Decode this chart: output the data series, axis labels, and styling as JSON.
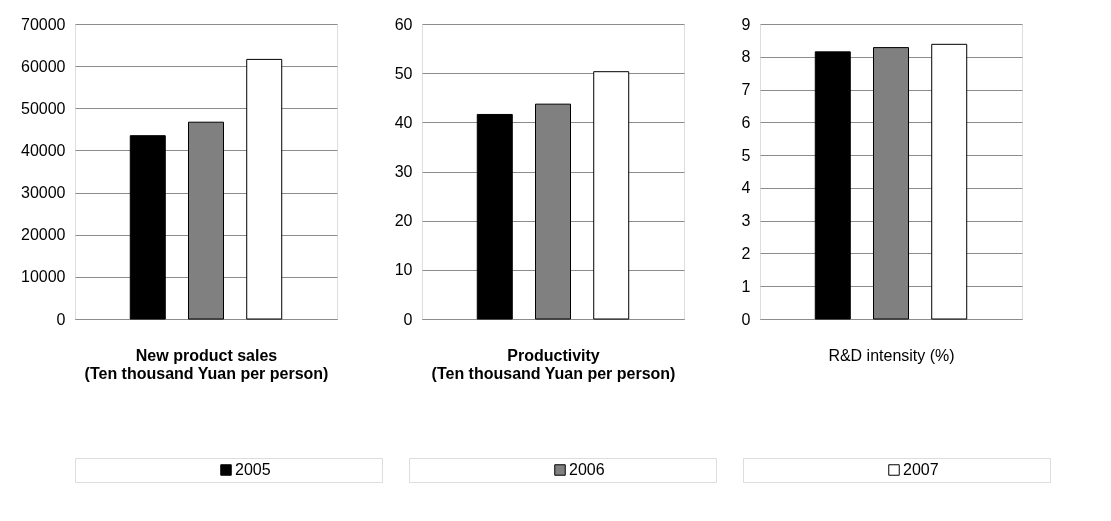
{
  "chart_data": [
    {
      "type": "bar",
      "xlabel": "New product sales\n(Ten thousand Yuan per person)",
      "categories": [
        null
      ],
      "series": [
        {
          "name": "2005",
          "color": "#000000",
          "values": [
            43500
          ]
        },
        {
          "name": "2006",
          "color": "#808080",
          "values": [
            46700
          ]
        },
        {
          "name": "2007",
          "color": "#ffffff",
          "values": [
            61600
          ]
        }
      ],
      "ylim": [
        0,
        70000
      ],
      "yticks": [
        0,
        10000,
        20000,
        30000,
        40000,
        50000,
        60000,
        70000
      ],
      "grid": "y",
      "legend": "bottom"
    },
    {
      "type": "bar",
      "xlabel": "Productivity\n(Ten thousand Yuan per person)",
      "categories": [
        null
      ],
      "series": [
        {
          "color": "#000000",
          "values": [
            41.6
          ]
        },
        {
          "color": "#808080",
          "values": [
            43.7
          ]
        },
        {
          "color": "#ffffff",
          "values": [
            50.3
          ]
        }
      ],
      "ylim": [
        0,
        60
      ],
      "yticks": [
        0,
        10,
        20,
        30,
        40,
        50,
        60
      ],
      "grid": "y"
    },
    {
      "type": "bar",
      "xlabel": "R&D intensity (%)",
      "categories": [
        null
      ],
      "series": [
        {
          "color": "#000000",
          "values": [
            8.15
          ]
        },
        {
          "color": "#808080",
          "values": [
            8.28
          ]
        },
        {
          "color": "#ffffff",
          "values": [
            8.38
          ]
        }
      ],
      "ylim": [
        0,
        9
      ],
      "yticks": [
        0,
        1,
        2,
        3,
        4,
        5,
        6,
        7,
        8,
        9
      ],
      "grid": "y"
    }
  ]
}
